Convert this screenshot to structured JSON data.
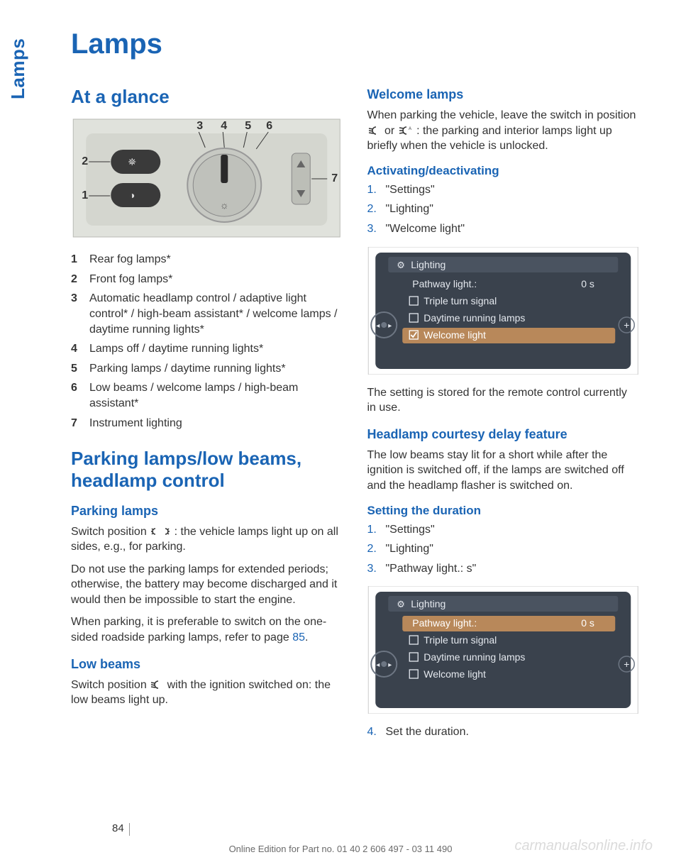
{
  "side_label": "Lamps",
  "title": "Lamps",
  "left": {
    "h2_glance": "At a glance",
    "dial": {
      "bg": "#d9dbd6",
      "knob_bg": "#c7c9c3",
      "labels": [
        "3",
        "4",
        "5",
        "6"
      ],
      "left_labels": [
        "2",
        "1"
      ],
      "right_label": "7"
    },
    "legend": [
      {
        "n": "1",
        "t": "Rear fog lamps*"
      },
      {
        "n": "2",
        "t": "Front fog lamps*"
      },
      {
        "n": "3",
        "t": "Automatic headlamp control / adaptive light control* / high-beam assistant* / welcome lamps / daytime running lights*"
      },
      {
        "n": "4",
        "t": "Lamps off / daytime running lights*"
      },
      {
        "n": "5",
        "t": "Parking lamps / daytime running lights*"
      },
      {
        "n": "6",
        "t": "Low beams / welcome lamps / high-beam assistant*"
      },
      {
        "n": "7",
        "t": "Instrument lighting"
      }
    ],
    "h2_parking": "Parking lamps/low beams, headlamp control",
    "h3_parking": "Parking lamps",
    "p_parking_1a": "Switch position ",
    "p_parking_1b": " : the vehicle lamps light up on all sides, e.g., for parking.",
    "p_parking_2": "Do not use the parking lamps for extended periods; otherwise, the battery may become discharged and it would then be impossible to start the engine.",
    "p_parking_3a": "When parking, it is preferable to switch on the one-sided roadside parking lamps, refer to page ",
    "p_parking_3b": "85",
    "p_parking_3c": ".",
    "h3_lowbeams": "Low beams",
    "p_lowbeams_a": "Switch position ",
    "p_lowbeams_b": " with the ignition switched on: the low beams light up."
  },
  "right": {
    "h3_welcome": "Welcome lamps",
    "p_welcome_a": "When parking the vehicle, leave the switch in position ",
    "p_welcome_b": " or ",
    "p_welcome_c": " : the parking and interior lamps light up briefly when the vehicle is unlocked.",
    "h4_activating": "Activating/deactivating",
    "steps_activating": [
      {
        "n": "1.",
        "t": "\"Settings\""
      },
      {
        "n": "2.",
        "t": "\"Lighting\""
      },
      {
        "n": "3.",
        "t": "\"Welcome light\""
      }
    ],
    "menu1": {
      "title": "Lighting",
      "items": [
        {
          "label": "Pathway light.:",
          "value": "0 s",
          "hl": false
        },
        {
          "label": "Triple turn signal",
          "value": "",
          "hl": false,
          "cb": true
        },
        {
          "label": "Daytime running lamps",
          "value": "",
          "hl": false,
          "cb": true
        },
        {
          "label": "Welcome light",
          "value": "",
          "hl": true,
          "cb": true,
          "checked": true
        }
      ]
    },
    "p_stored": "The setting is stored for the remote control currently in use.",
    "h3_courtesy": "Headlamp courtesy delay feature",
    "p_courtesy": "The low beams stay lit for a short while after the ignition is switched off, if the lamps are switched off and the headlamp flasher is switched on.",
    "h4_duration": "Setting the duration",
    "steps_duration": [
      {
        "n": "1.",
        "t": "\"Settings\""
      },
      {
        "n": "2.",
        "t": "\"Lighting\""
      },
      {
        "n": "3.",
        "t": "\"Pathway light.: s\""
      }
    ],
    "menu2": {
      "title": "Lighting",
      "items": [
        {
          "label": "Pathway light.:",
          "value": "0 s",
          "hl": true
        },
        {
          "label": "Triple turn signal",
          "value": "",
          "hl": false,
          "cb": true
        },
        {
          "label": "Daytime running lamps",
          "value": "",
          "hl": false,
          "cb": true
        },
        {
          "label": "Welcome light",
          "value": "",
          "hl": false,
          "cb": true
        }
      ]
    },
    "step_set": {
      "n": "4.",
      "t": "Set the duration."
    }
  },
  "footer": {
    "pagenum": "84",
    "line": "Online Edition for Part no. 01 40 2 606 497 - 03 11 490",
    "watermark": "carmanualsonline.info"
  },
  "colors": {
    "blue": "#1a64b4",
    "text": "#333333",
    "menu_bg": "#4a5360",
    "menu_bg2": "#3a424d",
    "menu_text": "#e4e8ee",
    "menu_hl": "#b8885a",
    "menu_border": "#6d7683"
  }
}
